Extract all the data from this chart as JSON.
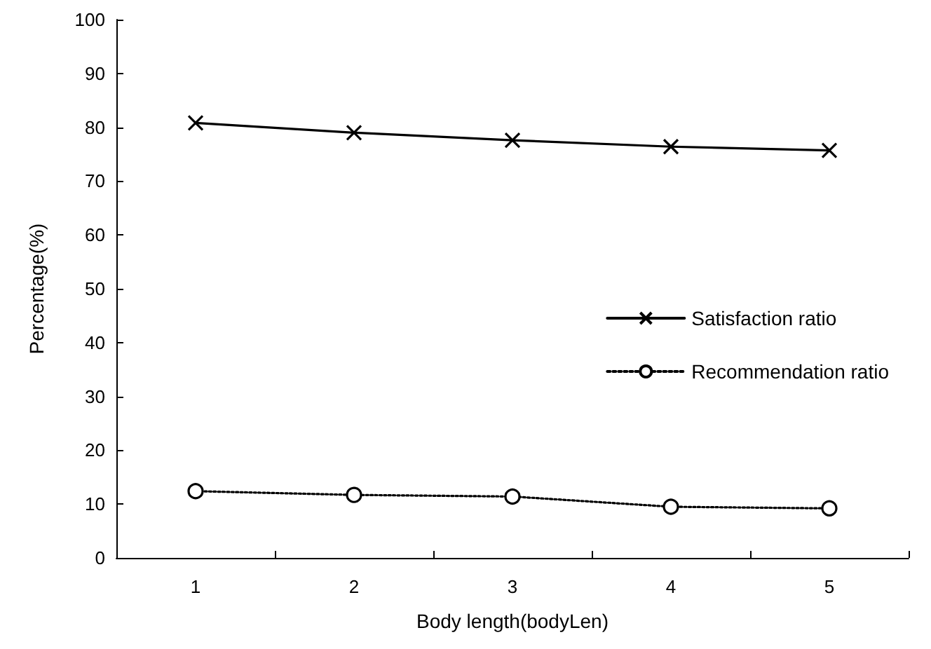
{
  "chart_data": {
    "type": "line",
    "xlabel": "Body length(bodyLen)",
    "ylabel": "Percentage(%)",
    "categories": [
      "1",
      "2",
      "3",
      "4",
      "5"
    ],
    "series": [
      {
        "name": "Satisfaction ratio",
        "color": "#000000",
        "values": [
          80.8,
          79.0,
          77.6,
          76.4,
          75.7
        ],
        "marker": "cross",
        "line_style": "solid"
      },
      {
        "name": "Recommendation ratio",
        "color": "#000000",
        "values": [
          12.4,
          11.7,
          11.4,
          9.5,
          9.2
        ],
        "marker": "circle",
        "line_style": "dotted"
      }
    ],
    "ylim": [
      0,
      100
    ],
    "yticks": [
      0,
      10,
      20,
      30,
      40,
      50,
      60,
      70,
      80,
      90,
      100
    ],
    "grid": false,
    "legend": "right"
  }
}
